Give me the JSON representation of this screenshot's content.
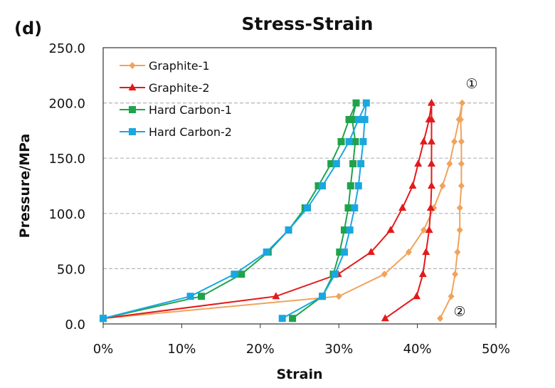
{
  "panel_label": "(d)",
  "chart_data": {
    "type": "line",
    "title": "Stress-Strain",
    "xlabel": "Strain",
    "ylabel": "Pressure/MPa",
    "xlim": [
      0,
      50
    ],
    "ylim": [
      0,
      250
    ],
    "x_ticks": [
      "0%",
      "10%",
      "20%",
      "30%",
      "40%",
      "50%"
    ],
    "y_ticks": [
      "0.0",
      "50.0",
      "100.0",
      "150.0",
      "200.0",
      "250.0"
    ],
    "grid": "horizontal dashed",
    "legend_position": "top-left",
    "annotations": [
      "①",
      "②"
    ],
    "series": [
      {
        "name": "Graphite-1",
        "color": "#F0A35A",
        "marker": "diamond",
        "strain_percent": [
          0,
          30.0,
          35.8,
          38.9,
          40.8,
          42.1,
          43.2,
          44.1,
          44.7,
          45.3,
          45.7,
          45.5,
          45.6,
          45.6,
          45.6,
          45.4,
          45.4,
          45.1,
          44.8,
          44.3,
          42.9
        ],
        "pressure": [
          5,
          25,
          45,
          65,
          85,
          105,
          125,
          145,
          165,
          185,
          200,
          185,
          165,
          145,
          125,
          105,
          85,
          65,
          45,
          25,
          5
        ]
      },
      {
        "name": "Graphite-2",
        "color": "#E31A1C",
        "marker": "triangle",
        "strain_percent": [
          0,
          22.0,
          29.9,
          34.1,
          36.6,
          38.1,
          39.4,
          40.1,
          40.8,
          41.5,
          41.8,
          41.8,
          41.8,
          41.8,
          41.8,
          41.7,
          41.5,
          41.1,
          40.7,
          39.9,
          35.9
        ],
        "pressure": [
          5,
          25,
          45,
          65,
          85,
          105,
          125,
          145,
          165,
          185,
          200,
          185,
          165,
          145,
          125,
          105,
          85,
          65,
          45,
          25,
          5
        ]
      },
      {
        "name": "Hard Carbon-1",
        "color": "#1FA34A",
        "marker": "square",
        "strain_percent": [
          0,
          12.5,
          17.6,
          21.0,
          23.6,
          25.7,
          27.4,
          29.0,
          30.3,
          31.3,
          32.2,
          31.7,
          32.1,
          31.8,
          31.5,
          31.2,
          30.7,
          30.1,
          29.3,
          27.9,
          24.1
        ],
        "pressure": [
          5,
          25,
          45,
          65,
          85,
          105,
          125,
          145,
          165,
          185,
          200,
          185,
          165,
          145,
          125,
          105,
          85,
          65,
          45,
          25,
          5
        ]
      },
      {
        "name": "Hard Carbon-2",
        "color": "#1AA7E0",
        "marker": "square",
        "strain_percent": [
          0,
          11.1,
          16.7,
          20.8,
          23.6,
          26.0,
          27.9,
          29.7,
          31.3,
          32.5,
          33.5,
          33.3,
          33.1,
          32.8,
          32.5,
          32.0,
          31.4,
          30.7,
          29.5,
          27.9,
          22.8
        ],
        "pressure": [
          5,
          25,
          45,
          65,
          85,
          105,
          125,
          145,
          165,
          185,
          200,
          185,
          165,
          145,
          125,
          105,
          85,
          65,
          45,
          25,
          5
        ]
      }
    ]
  }
}
